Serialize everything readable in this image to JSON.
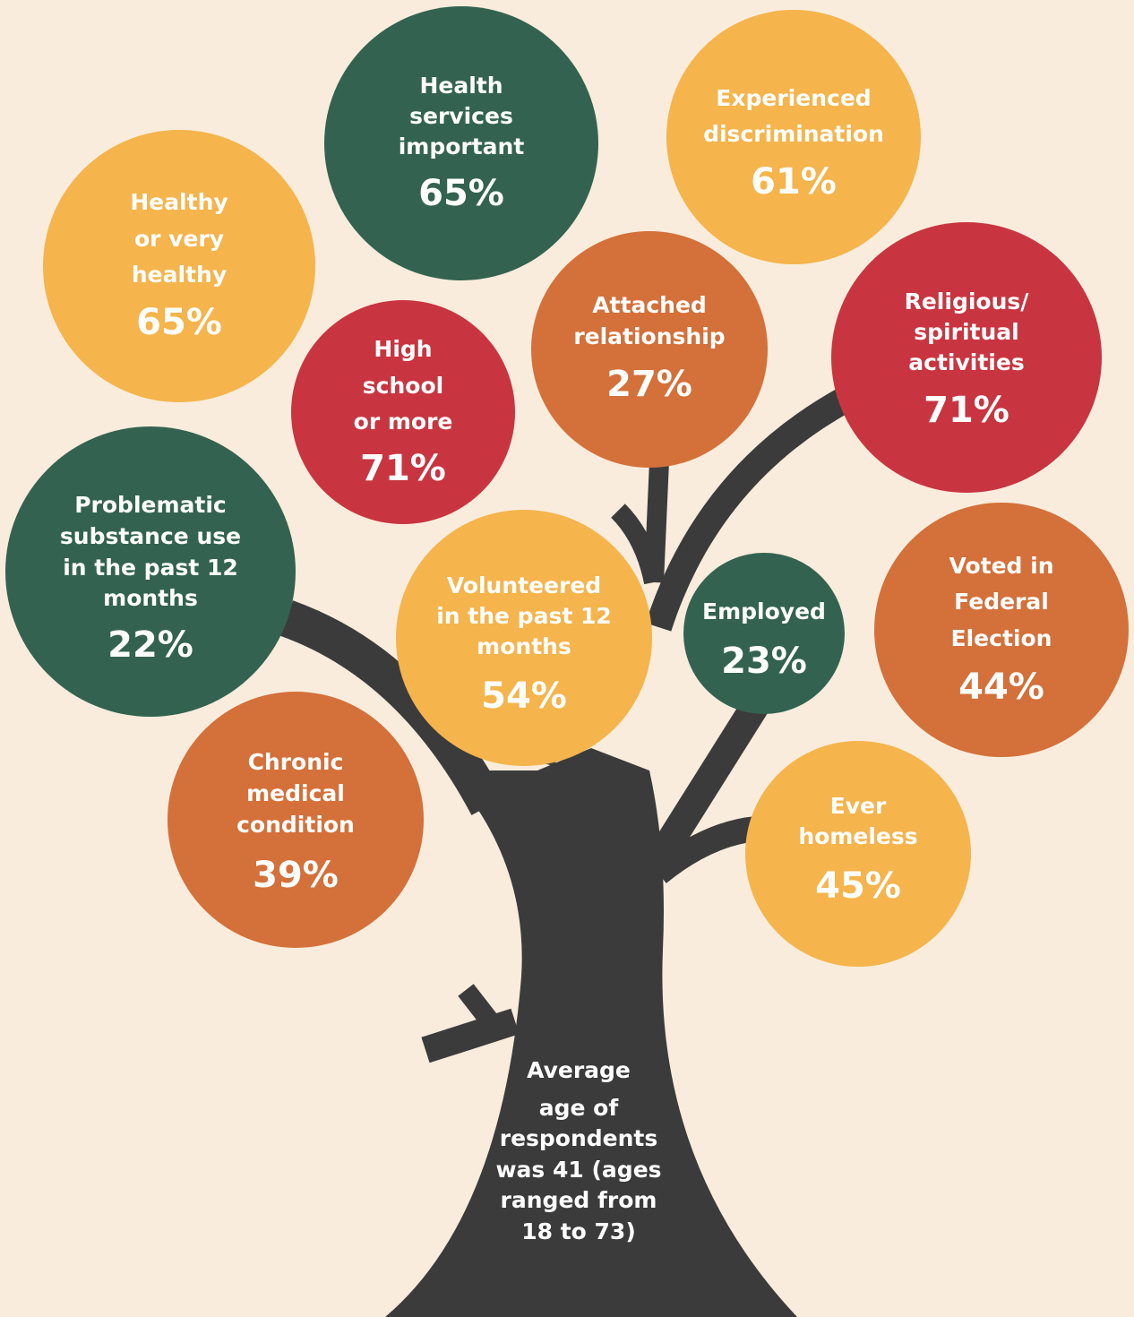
{
  "circles": [
    {
      "label": [
        "Health",
        "services",
        "important"
      ],
      "value": "65%"
    },
    {
      "label": [
        "Experienced",
        "discrimination"
      ],
      "value": "61%"
    },
    {
      "label": [
        "Healthy",
        "or very",
        "healthy"
      ],
      "value": "65%"
    },
    {
      "label": [
        "Attached",
        "relationship"
      ],
      "value": "27%"
    },
    {
      "label": [
        "Religious/",
        "spiritual",
        "activities"
      ],
      "value": "71%"
    },
    {
      "label": [
        "High",
        "school",
        "or more"
      ],
      "value": "71%"
    },
    {
      "label": [
        "Problematic",
        "substance use",
        "in the past 12",
        "months"
      ],
      "value": "22%"
    },
    {
      "label": [
        "Volunteered",
        "in the past 12",
        "months"
      ],
      "value": "54%"
    },
    {
      "label": [
        "Employed"
      ],
      "value": "23%"
    },
    {
      "label": [
        "Voted in",
        "Federal",
        "Election"
      ],
      "value": "44%"
    },
    {
      "label": [
        "Chronic",
        "medical",
        "condition"
      ],
      "value": "39%"
    },
    {
      "label": [
        "Ever",
        "homeless"
      ],
      "value": "45%"
    }
  ],
  "trunk": {
    "text": [
      "Average",
      "age of",
      "respondents",
      "was 41 (ages",
      "ranged from",
      "18 to 73)"
    ]
  }
}
